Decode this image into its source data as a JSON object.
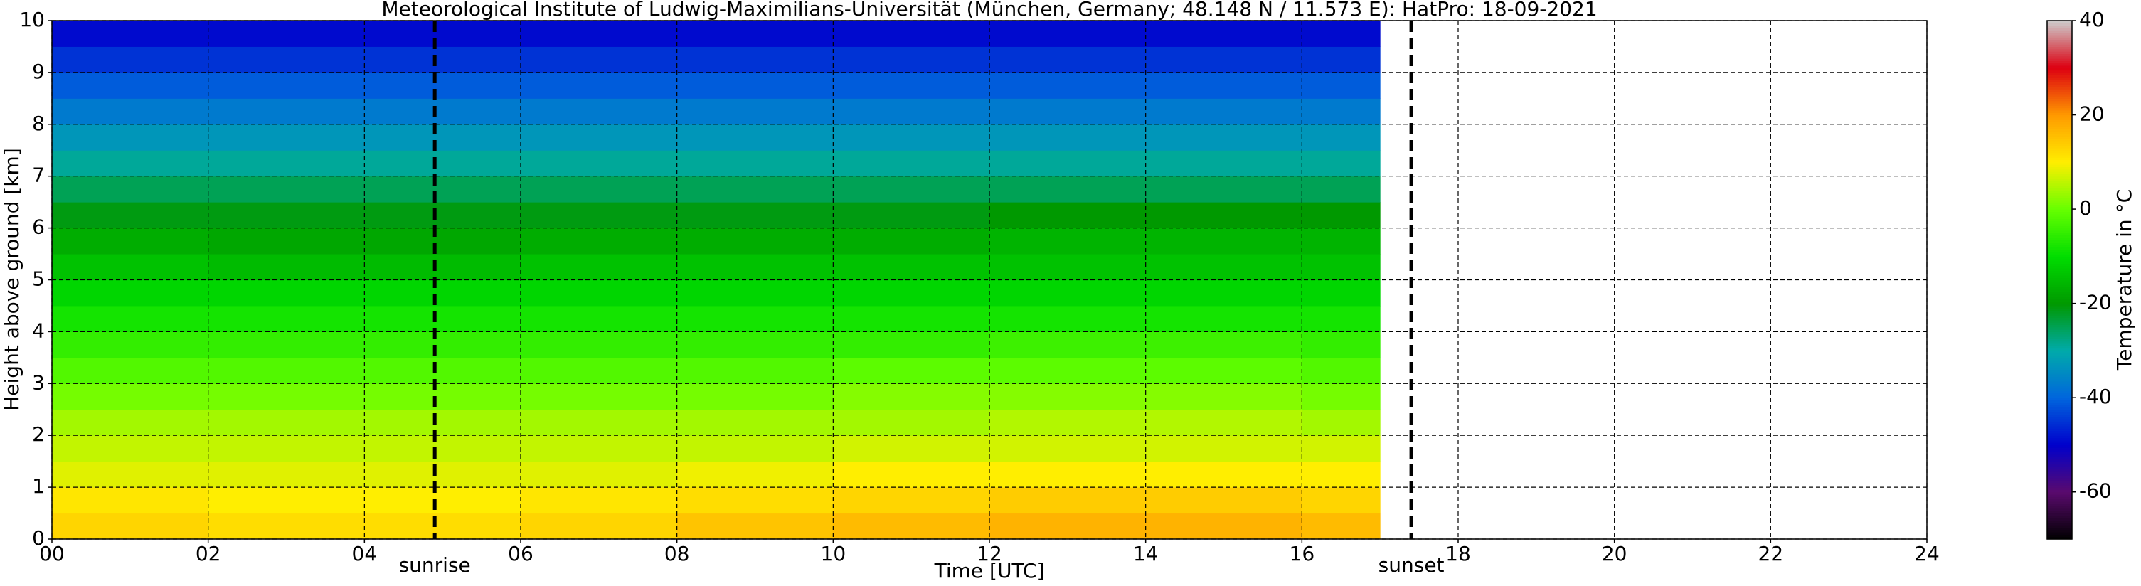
{
  "chart_data": {
    "type": "heatmap",
    "title": "Meteorological Institute of Ludwig-Maximilians-Universität (München, Germany; 48.148 N / 11.573 E):    HatPro: 18-09-2021",
    "xlabel": "Time [UTC]",
    "ylabel": "Height above ground [km]",
    "x_bins": [
      0,
      2,
      4,
      6,
      8,
      10,
      12,
      14,
      16,
      17
    ],
    "y_bins": [
      0,
      0.5,
      1,
      1.5,
      2,
      2.5,
      3,
      3.5,
      4,
      4.5,
      5,
      5.5,
      6,
      6.5,
      7,
      7.5,
      8,
      8.5,
      9,
      9.5,
      10
    ],
    "values": [
      [
        13,
        12,
        12,
        13,
        15,
        16,
        17,
        17,
        16
      ],
      [
        11,
        10,
        10,
        11,
        12,
        13,
        14,
        14,
        13
      ],
      [
        8,
        8,
        8,
        8,
        9,
        10,
        10,
        10,
        10
      ],
      [
        6,
        6,
        6,
        6,
        6,
        7,
        7,
        7,
        7
      ],
      [
        4,
        4,
        4,
        4,
        4,
        4,
        5,
        5,
        4
      ],
      [
        1,
        1,
        1,
        1,
        1,
        2,
        2,
        2,
        1
      ],
      [
        -2,
        -2,
        -2,
        -2,
        -2,
        -1,
        -1,
        -1,
        -2
      ],
      [
        -5,
        -5,
        -5,
        -5,
        -5,
        -5,
        -4,
        -4,
        -5
      ],
      [
        -8,
        -8,
        -8,
        -8,
        -8,
        -8,
        -8,
        -8,
        -8
      ],
      [
        -11,
        -11,
        -11,
        -11,
        -11,
        -11,
        -11,
        -11,
        -11
      ],
      [
        -14,
        -15,
        -15,
        -14,
        -14,
        -14,
        -14,
        -14,
        -14
      ],
      [
        -17,
        -18,
        -18,
        -17,
        -17,
        -17,
        -16,
        -16,
        -16
      ],
      [
        -21,
        -21,
        -21,
        -21,
        -21,
        -21,
        -20,
        -20,
        -20
      ],
      [
        -25,
        -25,
        -25,
        -25,
        -25,
        -25,
        -25,
        -25,
        -25
      ],
      [
        -29,
        -29,
        -29,
        -29,
        -29,
        -29,
        -29,
        -29,
        -29
      ],
      [
        -33,
        -33,
        -33,
        -33,
        -33,
        -33,
        -33,
        -33,
        -33
      ],
      [
        -37,
        -37,
        -37,
        -37,
        -37,
        -37,
        -37,
        -37,
        -37
      ],
      [
        -41,
        -41,
        -41,
        -41,
        -41,
        -41,
        -41,
        -41,
        -41
      ],
      [
        -45,
        -45,
        -45,
        -45,
        -45,
        -45,
        -45,
        -45,
        -45
      ],
      [
        -49,
        -49,
        -49,
        -49,
        -49,
        -49,
        -49,
        -49,
        -49
      ]
    ],
    "xlim": [
      0,
      24
    ],
    "xticks": [
      {
        "value": 0,
        "label": "00"
      },
      {
        "value": 2,
        "label": "02"
      },
      {
        "value": 4,
        "label": "04"
      },
      {
        "value": 6,
        "label": "06"
      },
      {
        "value": 8,
        "label": "08"
      },
      10,
      12,
      14,
      16,
      18,
      20,
      22,
      24
    ],
    "ylim": [
      0,
      10
    ],
    "yticks": [
      0,
      1,
      2,
      3,
      4,
      5,
      6,
      7,
      8,
      9,
      10
    ],
    "grid": true,
    "annotations": [
      {
        "text": "sunrise",
        "x": 4.9
      },
      {
        "text": "sunset",
        "x": 17.4
      }
    ],
    "colorbar": {
      "label": "Temperature in °C",
      "lim": [
        -70,
        40
      ],
      "ticks": [
        -60,
        -40,
        -20,
        0,
        20,
        40
      ],
      "colors": [
        "#000000",
        "#5a0a6e",
        "#0000cc",
        "#0066dd",
        "#00aaaa",
        "#009900",
        "#00dd00",
        "#66ff00",
        "#ffee00",
        "#ff9900",
        "#dd0011",
        "#cccccc"
      ]
    }
  }
}
